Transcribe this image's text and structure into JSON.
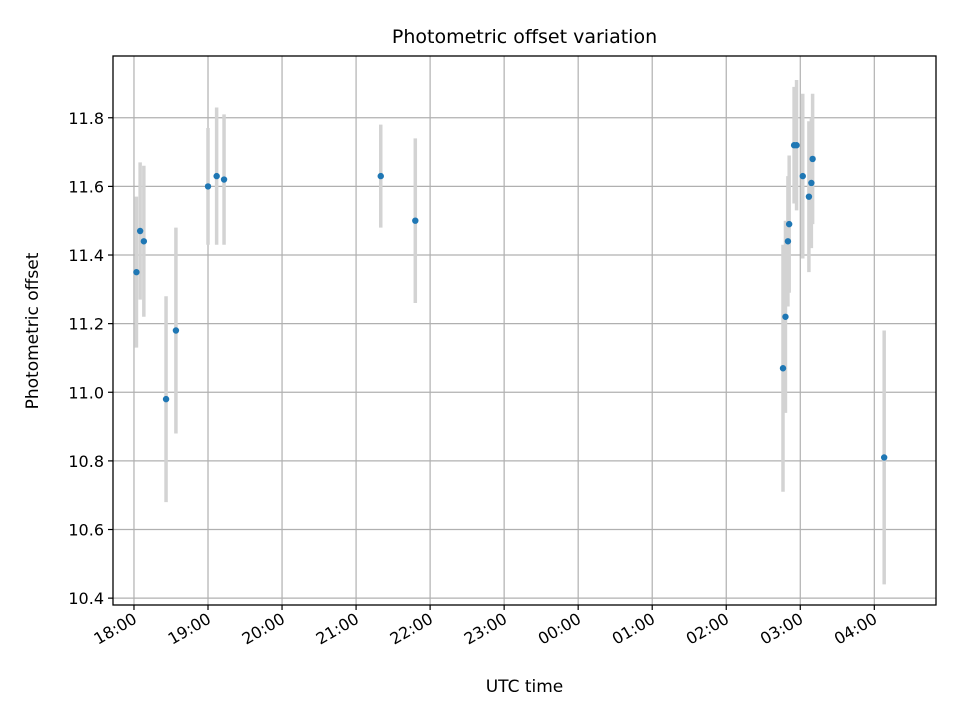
{
  "chart_data": {
    "type": "scatter",
    "title": "Photometric offset variation",
    "xlabel": "UTC time",
    "ylabel": "Photometric offset",
    "grid": true,
    "x_axis_type": "time",
    "xlim": [
      "17:43",
      "04:50"
    ],
    "ylim": [
      10.38,
      11.98
    ],
    "x_ticks": [
      "18:00",
      "19:00",
      "20:00",
      "21:00",
      "22:00",
      "23:00",
      "00:00",
      "01:00",
      "02:00",
      "03:00",
      "04:00"
    ],
    "y_ticks": [
      "10.4",
      "10.6",
      "10.8",
      "11.0",
      "11.2",
      "11.4",
      "11.6",
      "11.8"
    ],
    "colors": {
      "point": "#1f77b4",
      "errorbar": "#d3d3d3"
    },
    "series": [
      {
        "points": [
          {
            "t": "18:02",
            "y": 11.35,
            "err": 0.22
          },
          {
            "t": "18:05",
            "y": 11.47,
            "err": 0.2
          },
          {
            "t": "18:08",
            "y": 11.44,
            "err": 0.22
          },
          {
            "t": "18:26",
            "y": 10.98,
            "err": 0.3
          },
          {
            "t": "18:34",
            "y": 11.18,
            "err": 0.3
          },
          {
            "t": "19:00",
            "y": 11.6,
            "err": 0.17
          },
          {
            "t": "19:07",
            "y": 11.63,
            "err": 0.2
          },
          {
            "t": "19:13",
            "y": 11.62,
            "err": 0.19
          },
          {
            "t": "21:20",
            "y": 11.63,
            "err": 0.15
          },
          {
            "t": "21:48",
            "y": 11.5,
            "err": 0.24
          },
          {
            "t": "02:46",
            "y": 11.07,
            "err": 0.36
          },
          {
            "t": "02:48",
            "y": 11.22,
            "err": 0.28
          },
          {
            "t": "02:50",
            "y": 11.44,
            "err": 0.19
          },
          {
            "t": "02:51",
            "y": 11.49,
            "err": 0.2
          },
          {
            "t": "02:55",
            "y": 11.72,
            "err": 0.17
          },
          {
            "t": "02:57",
            "y": 11.72,
            "err": 0.19
          },
          {
            "t": "03:02",
            "y": 11.63,
            "err": 0.24
          },
          {
            "t": "03:07",
            "y": 11.57,
            "err": 0.22
          },
          {
            "t": "03:09",
            "y": 11.61,
            "err": 0.19
          },
          {
            "t": "03:10",
            "y": 11.68,
            "err": 0.19
          },
          {
            "t": "04:08",
            "y": 10.81,
            "err": 0.37
          }
        ]
      }
    ]
  }
}
